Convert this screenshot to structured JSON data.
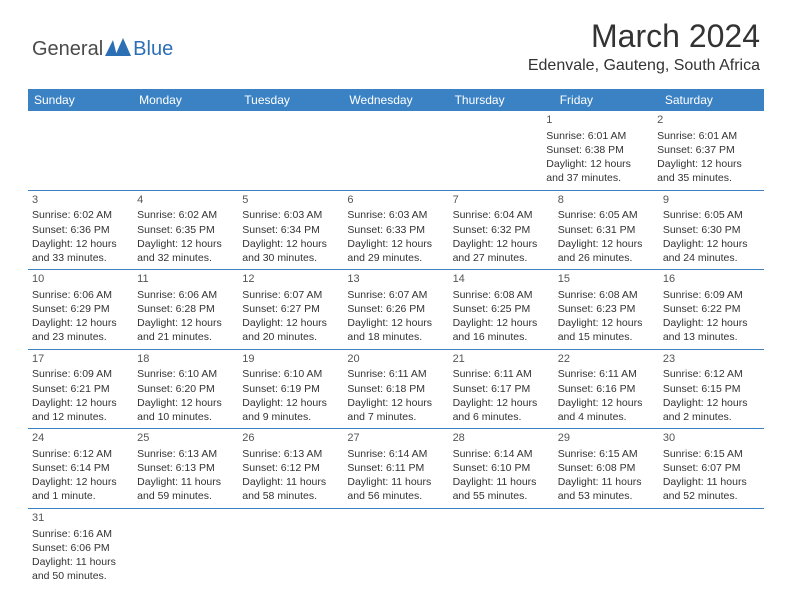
{
  "brand": {
    "general": "General",
    "blue": "Blue",
    "logo_color": "#2d6fb5"
  },
  "title": "March 2024",
  "location": "Edenvale, Gauteng, South Africa",
  "header_bg": "#3b82c4",
  "weekdays": [
    "Sunday",
    "Monday",
    "Tuesday",
    "Wednesday",
    "Thursday",
    "Friday",
    "Saturday"
  ],
  "weeks": [
    [
      null,
      null,
      null,
      null,
      null,
      {
        "n": "1",
        "sr": "Sunrise: 6:01 AM",
        "ss": "Sunset: 6:38 PM",
        "d1": "Daylight: 12 hours",
        "d2": "and 37 minutes."
      },
      {
        "n": "2",
        "sr": "Sunrise: 6:01 AM",
        "ss": "Sunset: 6:37 PM",
        "d1": "Daylight: 12 hours",
        "d2": "and 35 minutes."
      }
    ],
    [
      {
        "n": "3",
        "sr": "Sunrise: 6:02 AM",
        "ss": "Sunset: 6:36 PM",
        "d1": "Daylight: 12 hours",
        "d2": "and 33 minutes."
      },
      {
        "n": "4",
        "sr": "Sunrise: 6:02 AM",
        "ss": "Sunset: 6:35 PM",
        "d1": "Daylight: 12 hours",
        "d2": "and 32 minutes."
      },
      {
        "n": "5",
        "sr": "Sunrise: 6:03 AM",
        "ss": "Sunset: 6:34 PM",
        "d1": "Daylight: 12 hours",
        "d2": "and 30 minutes."
      },
      {
        "n": "6",
        "sr": "Sunrise: 6:03 AM",
        "ss": "Sunset: 6:33 PM",
        "d1": "Daylight: 12 hours",
        "d2": "and 29 minutes."
      },
      {
        "n": "7",
        "sr": "Sunrise: 6:04 AM",
        "ss": "Sunset: 6:32 PM",
        "d1": "Daylight: 12 hours",
        "d2": "and 27 minutes."
      },
      {
        "n": "8",
        "sr": "Sunrise: 6:05 AM",
        "ss": "Sunset: 6:31 PM",
        "d1": "Daylight: 12 hours",
        "d2": "and 26 minutes."
      },
      {
        "n": "9",
        "sr": "Sunrise: 6:05 AM",
        "ss": "Sunset: 6:30 PM",
        "d1": "Daylight: 12 hours",
        "d2": "and 24 minutes."
      }
    ],
    [
      {
        "n": "10",
        "sr": "Sunrise: 6:06 AM",
        "ss": "Sunset: 6:29 PM",
        "d1": "Daylight: 12 hours",
        "d2": "and 23 minutes."
      },
      {
        "n": "11",
        "sr": "Sunrise: 6:06 AM",
        "ss": "Sunset: 6:28 PM",
        "d1": "Daylight: 12 hours",
        "d2": "and 21 minutes."
      },
      {
        "n": "12",
        "sr": "Sunrise: 6:07 AM",
        "ss": "Sunset: 6:27 PM",
        "d1": "Daylight: 12 hours",
        "d2": "and 20 minutes."
      },
      {
        "n": "13",
        "sr": "Sunrise: 6:07 AM",
        "ss": "Sunset: 6:26 PM",
        "d1": "Daylight: 12 hours",
        "d2": "and 18 minutes."
      },
      {
        "n": "14",
        "sr": "Sunrise: 6:08 AM",
        "ss": "Sunset: 6:25 PM",
        "d1": "Daylight: 12 hours",
        "d2": "and 16 minutes."
      },
      {
        "n": "15",
        "sr": "Sunrise: 6:08 AM",
        "ss": "Sunset: 6:23 PM",
        "d1": "Daylight: 12 hours",
        "d2": "and 15 minutes."
      },
      {
        "n": "16",
        "sr": "Sunrise: 6:09 AM",
        "ss": "Sunset: 6:22 PM",
        "d1": "Daylight: 12 hours",
        "d2": "and 13 minutes."
      }
    ],
    [
      {
        "n": "17",
        "sr": "Sunrise: 6:09 AM",
        "ss": "Sunset: 6:21 PM",
        "d1": "Daylight: 12 hours",
        "d2": "and 12 minutes."
      },
      {
        "n": "18",
        "sr": "Sunrise: 6:10 AM",
        "ss": "Sunset: 6:20 PM",
        "d1": "Daylight: 12 hours",
        "d2": "and 10 minutes."
      },
      {
        "n": "19",
        "sr": "Sunrise: 6:10 AM",
        "ss": "Sunset: 6:19 PM",
        "d1": "Daylight: 12 hours",
        "d2": "and 9 minutes."
      },
      {
        "n": "20",
        "sr": "Sunrise: 6:11 AM",
        "ss": "Sunset: 6:18 PM",
        "d1": "Daylight: 12 hours",
        "d2": "and 7 minutes."
      },
      {
        "n": "21",
        "sr": "Sunrise: 6:11 AM",
        "ss": "Sunset: 6:17 PM",
        "d1": "Daylight: 12 hours",
        "d2": "and 6 minutes."
      },
      {
        "n": "22",
        "sr": "Sunrise: 6:11 AM",
        "ss": "Sunset: 6:16 PM",
        "d1": "Daylight: 12 hours",
        "d2": "and 4 minutes."
      },
      {
        "n": "23",
        "sr": "Sunrise: 6:12 AM",
        "ss": "Sunset: 6:15 PM",
        "d1": "Daylight: 12 hours",
        "d2": "and 2 minutes."
      }
    ],
    [
      {
        "n": "24",
        "sr": "Sunrise: 6:12 AM",
        "ss": "Sunset: 6:14 PM",
        "d1": "Daylight: 12 hours",
        "d2": "and 1 minute."
      },
      {
        "n": "25",
        "sr": "Sunrise: 6:13 AM",
        "ss": "Sunset: 6:13 PM",
        "d1": "Daylight: 11 hours",
        "d2": "and 59 minutes."
      },
      {
        "n": "26",
        "sr": "Sunrise: 6:13 AM",
        "ss": "Sunset: 6:12 PM",
        "d1": "Daylight: 11 hours",
        "d2": "and 58 minutes."
      },
      {
        "n": "27",
        "sr": "Sunrise: 6:14 AM",
        "ss": "Sunset: 6:11 PM",
        "d1": "Daylight: 11 hours",
        "d2": "and 56 minutes."
      },
      {
        "n": "28",
        "sr": "Sunrise: 6:14 AM",
        "ss": "Sunset: 6:10 PM",
        "d1": "Daylight: 11 hours",
        "d2": "and 55 minutes."
      },
      {
        "n": "29",
        "sr": "Sunrise: 6:15 AM",
        "ss": "Sunset: 6:08 PM",
        "d1": "Daylight: 11 hours",
        "d2": "and 53 minutes."
      },
      {
        "n": "30",
        "sr": "Sunrise: 6:15 AM",
        "ss": "Sunset: 6:07 PM",
        "d1": "Daylight: 11 hours",
        "d2": "and 52 minutes."
      }
    ],
    [
      {
        "n": "31",
        "sr": "Sunrise: 6:16 AM",
        "ss": "Sunset: 6:06 PM",
        "d1": "Daylight: 11 hours",
        "d2": "and 50 minutes."
      },
      null,
      null,
      null,
      null,
      null,
      null
    ]
  ]
}
